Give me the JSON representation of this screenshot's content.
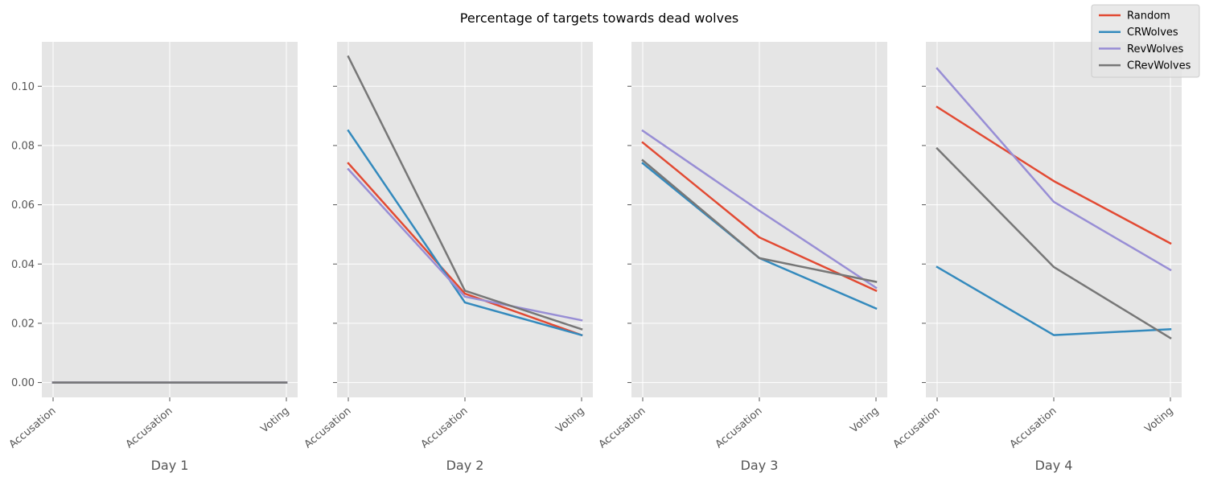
{
  "chart_data": {
    "type": "line",
    "title": "Percentage of targets towards dead wolves",
    "categories": [
      "Accusation",
      "Accusation",
      "Voting"
    ],
    "ylim": [
      -0.005,
      0.115
    ],
    "yticks": [
      0.0,
      0.02,
      0.04,
      0.06,
      0.08,
      0.1
    ],
    "ytick_labels": [
      "0.00",
      "0.02",
      "0.04",
      "0.06",
      "0.08",
      "0.10"
    ],
    "grid": true,
    "legend_placement": "top-right",
    "colors": {
      "background": "#e5e5e5",
      "grid": "#ffffff",
      "Random": "#e24a33",
      "CRWolves": "#348abd",
      "RevWolves": "#988ed5",
      "CRevWolves": "#777777"
    },
    "legend": [
      "Random",
      "CRWolves",
      "RevWolves",
      "CRevWolves"
    ],
    "panels": [
      {
        "xlabel": "Day 1",
        "series": [
          {
            "name": "Random",
            "values": [
              0.0,
              0.0,
              0.0
            ]
          },
          {
            "name": "CRWolves",
            "values": [
              0.0,
              0.0,
              0.0
            ]
          },
          {
            "name": "RevWolves",
            "values": [
              0.0,
              0.0,
              0.0
            ]
          },
          {
            "name": "CRevWolves",
            "values": [
              0.0,
              0.0,
              0.0
            ]
          }
        ]
      },
      {
        "xlabel": "Day 2",
        "series": [
          {
            "name": "Random",
            "values": [
              0.074,
              0.03,
              0.016
            ]
          },
          {
            "name": "CRWolves",
            "values": [
              0.085,
              0.027,
              0.016
            ]
          },
          {
            "name": "RevWolves",
            "values": [
              0.072,
              0.029,
              0.021
            ]
          },
          {
            "name": "CRevWolves",
            "values": [
              0.11,
              0.031,
              0.018
            ]
          }
        ]
      },
      {
        "xlabel": "Day 3",
        "series": [
          {
            "name": "Random",
            "values": [
              0.081,
              0.049,
              0.031
            ]
          },
          {
            "name": "CRWolves",
            "values": [
              0.074,
              0.042,
              0.025
            ]
          },
          {
            "name": "RevWolves",
            "values": [
              0.085,
              0.058,
              0.032
            ]
          },
          {
            "name": "CRevWolves",
            "values": [
              0.075,
              0.042,
              0.034
            ]
          }
        ]
      },
      {
        "xlabel": "Day 4",
        "series": [
          {
            "name": "Random",
            "values": [
              0.093,
              0.068,
              0.047
            ]
          },
          {
            "name": "CRWolves",
            "values": [
              0.039,
              0.016,
              0.018
            ]
          },
          {
            "name": "RevWolves",
            "values": [
              0.106,
              0.061,
              0.038
            ]
          },
          {
            "name": "CRevWolves",
            "values": [
              0.079,
              0.039,
              0.015
            ]
          }
        ]
      }
    ]
  }
}
